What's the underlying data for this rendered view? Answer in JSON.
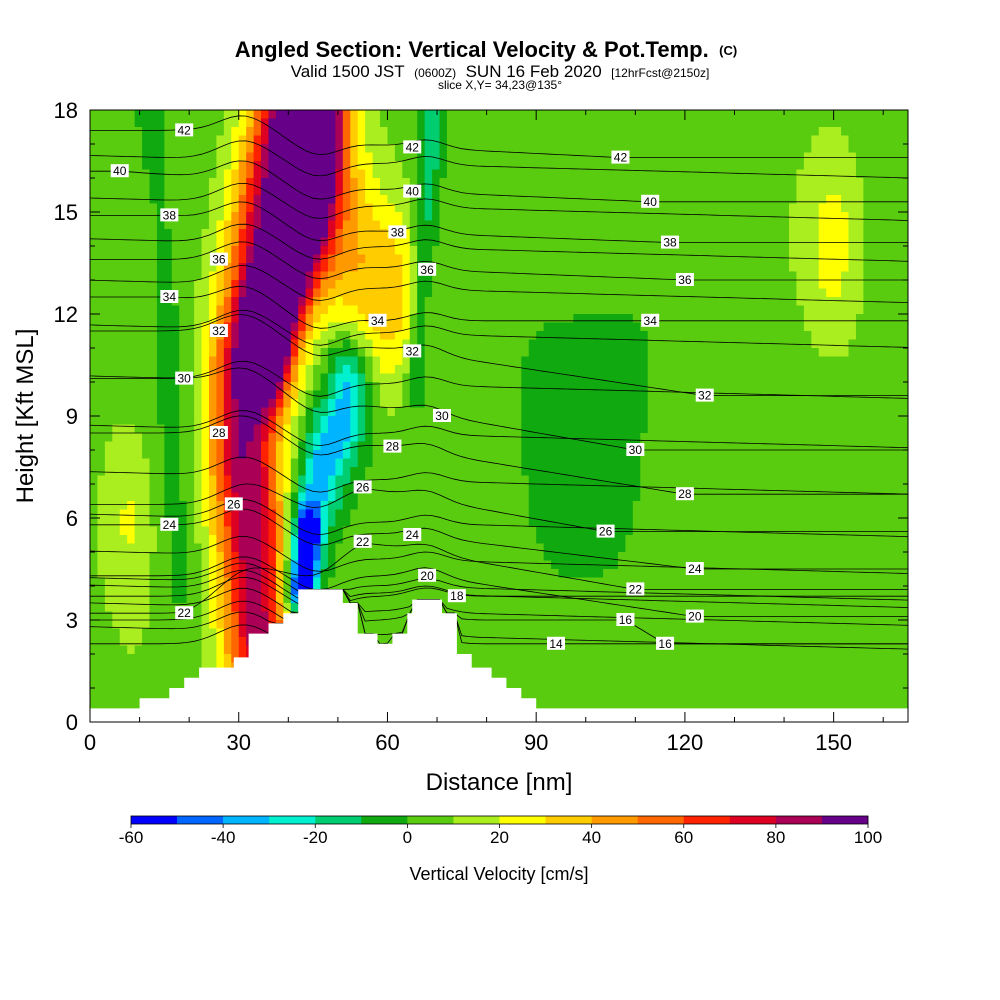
{
  "chart_data": {
    "type": "heatmap",
    "title": "Angled Section: Vertical Velocity & Pot.Temp.",
    "title_suffix": "(C)",
    "subtitle_parts": [
      "Valid 1500 JST",
      "(0600Z)",
      "SUN 16 Feb 2020",
      "[12hrFcst@2150z]"
    ],
    "slice_label": "slice X,Y= 34,23@135°",
    "xlabel": "Distance [nm]",
    "ylabel": "Height [Kft MSL]",
    "xlim": [
      0,
      165
    ],
    "ylim": [
      0,
      18
    ],
    "x_ticks": [
      0,
      30,
      60,
      90,
      120,
      150
    ],
    "y_ticks": [
      0,
      3,
      6,
      9,
      12,
      15,
      18
    ],
    "colorbar": {
      "label": "Vertical Velocity [cm/s]",
      "tick_values": [
        -60,
        -40,
        -20,
        0,
        20,
        40,
        60,
        80,
        100
      ],
      "colors": [
        "#0000ff",
        "#0066ff",
        "#00b4ff",
        "#00f0d0",
        "#00cc70",
        "#10aa10",
        "#5acc10",
        "#aaee20",
        "#ffff00",
        "#ffcc00",
        "#ff9900",
        "#ff6600",
        "#ff2200",
        "#dd0022",
        "#aa0055",
        "#660088"
      ]
    },
    "terrain": [
      [
        0,
        0.4
      ],
      [
        10,
        0.4
      ],
      [
        10,
        0.7
      ],
      [
        16,
        0.7
      ],
      [
        16,
        1.0
      ],
      [
        19,
        1.0
      ],
      [
        19,
        1.3
      ],
      [
        22,
        1.3
      ],
      [
        22,
        1.6
      ],
      [
        29,
        1.6
      ],
      [
        29,
        1.9
      ],
      [
        32,
        1.9
      ],
      [
        32,
        2.6
      ],
      [
        36,
        2.6
      ],
      [
        36,
        2.9
      ],
      [
        39,
        2.9
      ],
      [
        39,
        3.2
      ],
      [
        42,
        3.2
      ],
      [
        42,
        3.9
      ],
      [
        51,
        3.9
      ],
      [
        51,
        3.5
      ],
      [
        54,
        3.5
      ],
      [
        54,
        2.6
      ],
      [
        58,
        2.6
      ],
      [
        58,
        2.3
      ],
      [
        61,
        2.3
      ],
      [
        61,
        2.6
      ],
      [
        64,
        2.6
      ],
      [
        64,
        3.2
      ],
      [
        65,
        3.2
      ],
      [
        65,
        3.6
      ],
      [
        71,
        3.6
      ],
      [
        71,
        3.2
      ],
      [
        74,
        3.2
      ],
      [
        74,
        2.0
      ],
      [
        77,
        2.0
      ],
      [
        77,
        1.6
      ],
      [
        81,
        1.6
      ],
      [
        81,
        1.3
      ],
      [
        84,
        1.3
      ],
      [
        84,
        1.0
      ],
      [
        87,
        1.0
      ],
      [
        87,
        0.7
      ],
      [
        90,
        0.7
      ],
      [
        90,
        0.4
      ],
      [
        165,
        0.4
      ]
    ],
    "velocity_field": {
      "background": 5,
      "features": [
        {
          "type": "band",
          "name": "main updraft",
          "path": [
            [
              34,
              2.5
            ],
            [
              33,
              5
            ],
            [
              31,
              8
            ],
            [
              31,
              10
            ],
            [
              33,
              12
            ],
            [
              35,
              14
            ],
            [
              36,
              15
            ],
            [
              38,
              16
            ],
            [
              40,
              17
            ],
            [
              41,
              18
            ]
          ],
          "width": 5,
          "value": 82
        },
        {
          "type": "band",
          "name": "upper updraft core",
          "path": [
            [
              36,
              11
            ],
            [
              40,
              13
            ],
            [
              44,
              15
            ],
            [
              46,
              17
            ],
            [
              46,
              18
            ]
          ],
          "width": 3.5,
          "value": 90
        },
        {
          "type": "band",
          "name": "upper warm plume",
          "path": [
            [
              42,
              18
            ],
            [
              47,
              16
            ],
            [
              52,
              14
            ],
            [
              56,
              13
            ],
            [
              60,
              12.5
            ]
          ],
          "width": 6,
          "value": 32
        },
        {
          "type": "band",
          "name": "downdraft",
          "path": [
            [
              42,
              4
            ],
            [
              44,
              6
            ],
            [
              48,
              8
            ],
            [
              51,
              9
            ],
            [
              52,
              10
            ]
          ],
          "width": 3,
          "value": -42
        },
        {
          "type": "band",
          "name": "downdraft core",
          "path": [
            [
              43,
              4
            ],
            [
              44,
              5.5
            ]
          ],
          "width": 1.5,
          "value": -65
        },
        {
          "type": "band",
          "name": "weak downdraft left",
          "path": [
            [
              18,
              4
            ],
            [
              17,
              8
            ],
            [
              16,
              11
            ],
            [
              15,
              14
            ],
            [
              13,
              16
            ],
            [
              12,
              18
            ]
          ],
          "width": 3,
          "value": -8
        },
        {
          "type": "band",
          "name": "mid downdraft",
          "path": [
            [
              66,
              10
            ],
            [
              67,
              13
            ],
            [
              68,
              16
            ],
            [
              69,
              18
            ]
          ],
          "width": 1.8,
          "value": -22
        },
        {
          "type": "blob",
          "name": "weak updraft left",
          "center": [
            8,
            6
          ],
          "radius": [
            6,
            3
          ],
          "value": 18
        },
        {
          "type": "blob",
          "name": "weak updraft right",
          "center": [
            150,
            14
          ],
          "radius": [
            6,
            3
          ],
          "value": 18
        },
        {
          "type": "blob",
          "name": "weak sinking east",
          "center": [
            100,
            9
          ],
          "radius": [
            20,
            6
          ],
          "value": -8
        }
      ]
    },
    "isotherms": [
      {
        "value": 14,
        "label_x": 94,
        "label_y": 2.3
      },
      {
        "value": 16,
        "label_x": 108,
        "label_y": 3.0
      },
      {
        "value": 16,
        "label_x": 116,
        "label_y": 2.3
      },
      {
        "value": 18,
        "label_x": 74,
        "label_y": 3.7
      },
      {
        "value": 20,
        "label_x": 68,
        "label_y": 4.3
      },
      {
        "value": 20,
        "label_x": 122,
        "label_y": 3.1
      },
      {
        "value": 22,
        "label_x": 19,
        "label_y": 3.2
      },
      {
        "value": 22,
        "label_x": 55,
        "label_y": 5.3
      },
      {
        "value": 22,
        "label_x": 110,
        "label_y": 3.9
      },
      {
        "value": 24,
        "label_x": 16,
        "label_y": 5.8
      },
      {
        "value": 24,
        "label_x": 65,
        "label_y": 5.5
      },
      {
        "value": 24,
        "label_x": 122,
        "label_y": 4.5
      },
      {
        "value": 26,
        "label_x": 29,
        "label_y": 6.4
      },
      {
        "value": 26,
        "label_x": 55,
        "label_y": 6.9
      },
      {
        "value": 26,
        "label_x": 104,
        "label_y": 5.6
      },
      {
        "value": 28,
        "label_x": 26,
        "label_y": 8.5
      },
      {
        "value": 28,
        "label_x": 61,
        "label_y": 8.1
      },
      {
        "value": 28,
        "label_x": 120,
        "label_y": 6.7
      },
      {
        "value": 30,
        "label_x": 19,
        "label_y": 10.1
      },
      {
        "value": 30,
        "label_x": 71,
        "label_y": 9.0
      },
      {
        "value": 30,
        "label_x": 110,
        "label_y": 8.0
      },
      {
        "value": 32,
        "label_x": 26,
        "label_y": 11.5
      },
      {
        "value": 32,
        "label_x": 65,
        "label_y": 10.9
      },
      {
        "value": 32,
        "label_x": 124,
        "label_y": 9.6
      },
      {
        "value": 34,
        "label_x": 16,
        "label_y": 12.5
      },
      {
        "value": 34,
        "label_x": 58,
        "label_y": 11.8
      },
      {
        "value": 34,
        "label_x": 113,
        "label_y": 11.8
      },
      {
        "value": 36,
        "label_x": 26,
        "label_y": 13.6
      },
      {
        "value": 36,
        "label_x": 68,
        "label_y": 13.3
      },
      {
        "value": 36,
        "label_x": 120,
        "label_y": 13.0
      },
      {
        "value": 38,
        "label_x": 16,
        "label_y": 14.9
      },
      {
        "value": 38,
        "label_x": 62,
        "label_y": 14.4
      },
      {
        "value": 38,
        "label_x": 117,
        "label_y": 14.1
      },
      {
        "value": 40,
        "label_x": 6,
        "label_y": 16.2
      },
      {
        "value": 40,
        "label_x": 65,
        "label_y": 15.6
      },
      {
        "value": 40,
        "label_x": 113,
        "label_y": 15.3
      },
      {
        "value": 42,
        "label_x": 19,
        "label_y": 17.4
      },
      {
        "value": 42,
        "label_x": 65,
        "label_y": 16.9
      },
      {
        "value": 42,
        "label_x": 107,
        "label_y": 16.6
      }
    ]
  }
}
